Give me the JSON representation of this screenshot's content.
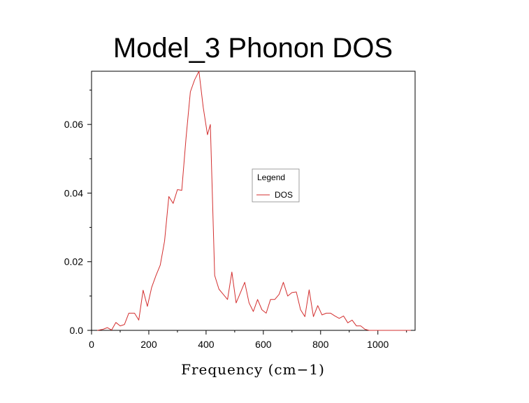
{
  "chart_data": {
    "type": "line",
    "title": "Model_3 Phonon DOS",
    "xlabel": "Frequency (cm−1)",
    "ylabel": "",
    "xlim": [
      0,
      1130
    ],
    "ylim": [
      0,
      0.0755
    ],
    "x_ticks": [
      0,
      200,
      400,
      600,
      800,
      1000
    ],
    "x_tick_labels": [
      "0",
      "200",
      "400",
      "600",
      "800",
      "1000"
    ],
    "y_ticks": [
      0.0,
      0.02,
      0.04,
      0.06
    ],
    "y_tick_labels": [
      "0.0",
      "0.02",
      "0.04",
      "0.06"
    ],
    "grid": false,
    "legend": {
      "title": "Legend",
      "position": "center-right"
    },
    "series": [
      {
        "name": "DOS",
        "color": "#d32f2f",
        "x": [
          20,
          40,
          55,
          70,
          85,
          100,
          115,
          130,
          150,
          165,
          180,
          195,
          210,
          225,
          240,
          255,
          270,
          285,
          300,
          315,
          330,
          345,
          360,
          375,
          390,
          405,
          415,
          430,
          445,
          460,
          475,
          490,
          505,
          520,
          535,
          550,
          565,
          580,
          595,
          610,
          625,
          640,
          655,
          670,
          685,
          700,
          715,
          730,
          745,
          760,
          775,
          790,
          805,
          820,
          835,
          850,
          865,
          880,
          895,
          910,
          925,
          940,
          955,
          970,
          985,
          1000,
          1015,
          1030,
          1045,
          1060,
          1075,
          1090,
          1105,
          1115
        ],
        "values": [
          0.0,
          0.0003,
          0.0008,
          0.0001,
          0.0023,
          0.0013,
          0.0017,
          0.005,
          0.005,
          0.003,
          0.0117,
          0.007,
          0.0125,
          0.016,
          0.019,
          0.026,
          0.039,
          0.037,
          0.041,
          0.0408,
          0.056,
          0.0695,
          0.073,
          0.0755,
          0.065,
          0.057,
          0.06,
          0.016,
          0.012,
          0.0105,
          0.009,
          0.017,
          0.008,
          0.011,
          0.014,
          0.008,
          0.0055,
          0.009,
          0.006,
          0.005,
          0.009,
          0.009,
          0.0105,
          0.014,
          0.01,
          0.011,
          0.0112,
          0.006,
          0.004,
          0.0118,
          0.004,
          0.0072,
          0.0045,
          0.005,
          0.005,
          0.0042,
          0.0035,
          0.0042,
          0.0022,
          0.003,
          0.0013,
          0.0013,
          0.0003,
          0.0,
          0.0,
          0.0,
          0.0,
          0.0,
          0.0,
          0.0,
          0.0,
          0.0,
          0.0,
          0.0
        ]
      }
    ]
  }
}
